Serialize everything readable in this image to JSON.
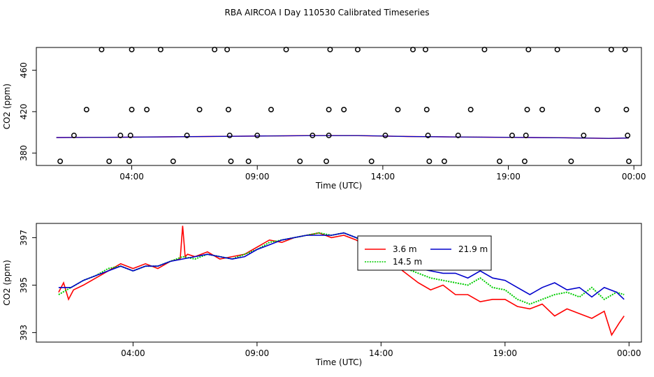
{
  "title": "RBA AIRCOA I  Day 110530  Calibrated Timeseries",
  "chart_data": [
    {
      "type": "scatter",
      "xlabel": "Time (UTC)",
      "ylabel": "CO2 (ppm)",
      "xlim": [
        0.2,
        24.3
      ],
      "ylim": [
        368,
        482
      ],
      "xticks": [
        {
          "v": 4,
          "label": "04:00"
        },
        {
          "v": 9,
          "label": "09:00"
        },
        {
          "v": 14,
          "label": "14:00"
        },
        {
          "v": 19,
          "label": "19:00"
        },
        {
          "v": 24,
          "label": "00:00"
        }
      ],
      "yticks": [
        380,
        420,
        460
      ],
      "colors": {
        "3.6m": "#ff0000",
        "14.5m": "#00cc00",
        "21.9m": "#0000cc"
      },
      "points": [
        {
          "x": 1.15,
          "y": 372
        },
        {
          "x": 1.7,
          "y": 397
        },
        {
          "x": 2.2,
          "y": 422
        },
        {
          "x": 2.8,
          "y": 480
        },
        {
          "x": 3.1,
          "y": 372
        },
        {
          "x": 3.55,
          "y": 397
        },
        {
          "x": 3.9,
          "y": 372
        },
        {
          "x": 3.95,
          "y": 397
        },
        {
          "x": 4.0,
          "y": 422
        },
        {
          "x": 4.0,
          "y": 480
        },
        {
          "x": 4.6,
          "y": 422
        },
        {
          "x": 5.15,
          "y": 480
        },
        {
          "x": 5.65,
          "y": 372
        },
        {
          "x": 6.2,
          "y": 397
        },
        {
          "x": 6.7,
          "y": 422
        },
        {
          "x": 7.3,
          "y": 480
        },
        {
          "x": 7.8,
          "y": 480
        },
        {
          "x": 7.85,
          "y": 422
        },
        {
          "x": 7.9,
          "y": 397
        },
        {
          "x": 7.95,
          "y": 372
        },
        {
          "x": 8.65,
          "y": 372
        },
        {
          "x": 9.0,
          "y": 397
        },
        {
          "x": 9.55,
          "y": 422
        },
        {
          "x": 10.15,
          "y": 480
        },
        {
          "x": 10.7,
          "y": 372
        },
        {
          "x": 11.2,
          "y": 397
        },
        {
          "x": 11.75,
          "y": 372
        },
        {
          "x": 11.85,
          "y": 397
        },
        {
          "x": 11.85,
          "y": 422
        },
        {
          "x": 11.9,
          "y": 480
        },
        {
          "x": 12.45,
          "y": 422
        },
        {
          "x": 13.0,
          "y": 480
        },
        {
          "x": 13.55,
          "y": 372
        },
        {
          "x": 14.1,
          "y": 397
        },
        {
          "x": 14.6,
          "y": 422
        },
        {
          "x": 15.2,
          "y": 480
        },
        {
          "x": 15.7,
          "y": 480
        },
        {
          "x": 15.75,
          "y": 422
        },
        {
          "x": 15.8,
          "y": 397
        },
        {
          "x": 15.85,
          "y": 372
        },
        {
          "x": 16.45,
          "y": 372
        },
        {
          "x": 17.0,
          "y": 397
        },
        {
          "x": 17.5,
          "y": 422
        },
        {
          "x": 18.05,
          "y": 480
        },
        {
          "x": 18.65,
          "y": 372
        },
        {
          "x": 19.15,
          "y": 397
        },
        {
          "x": 19.65,
          "y": 372
        },
        {
          "x": 19.7,
          "y": 397
        },
        {
          "x": 19.75,
          "y": 422
        },
        {
          "x": 19.8,
          "y": 480
        },
        {
          "x": 20.35,
          "y": 422
        },
        {
          "x": 20.95,
          "y": 480
        },
        {
          "x": 21.5,
          "y": 372
        },
        {
          "x": 22.0,
          "y": 397
        },
        {
          "x": 22.55,
          "y": 422
        },
        {
          "x": 23.1,
          "y": 480
        },
        {
          "x": 23.65,
          "y": 480
        },
        {
          "x": 23.7,
          "y": 422
        },
        {
          "x": 23.75,
          "y": 397
        },
        {
          "x": 23.8,
          "y": 372
        }
      ],
      "line_points": {
        "x": [
          1,
          3,
          5,
          7,
          9,
          11,
          13,
          15,
          17,
          19,
          21,
          23,
          23.8
        ],
        "y": [
          395,
          395.2,
          395.6,
          396,
          396.4,
          396.8,
          396.9,
          396,
          395.5,
          395.2,
          394.8,
          394.2,
          394.5
        ]
      }
    },
    {
      "type": "line",
      "xlabel": "Time (UTC)",
      "ylabel": "CO2 (ppm)",
      "xlim": [
        0.1,
        24.5
      ],
      "ylim": [
        392.6,
        397.6
      ],
      "xticks": [
        {
          "v": 4,
          "label": "04:00"
        },
        {
          "v": 9,
          "label": "09:00"
        },
        {
          "v": 14,
          "label": "14:00"
        },
        {
          "v": 19,
          "label": "19:00"
        },
        {
          "v": 24,
          "label": "00:00"
        }
      ],
      "yticks": [
        393,
        395,
        397
      ],
      "legend": {
        "position": "top-center",
        "entries": [
          {
            "name": "3.6 m",
            "color": "#ff0000",
            "style": "solid"
          },
          {
            "name": "21.9 m",
            "color": "#0000cc",
            "style": "solid"
          },
          {
            "name": "14.5 m",
            "color": "#00cc00",
            "style": "dotted"
          }
        ]
      },
      "series": [
        {
          "name": "3.6 m",
          "color": "#ff0000",
          "x": [
            1,
            1.2,
            1.4,
            1.6,
            2.0,
            2.5,
            3.0,
            3.5,
            4.0,
            4.5,
            5.0,
            5.5,
            5.9,
            6.0,
            6.1,
            6.2,
            6.5,
            7.0,
            7.5,
            8.0,
            8.5,
            9.0,
            9.5,
            10.0,
            10.5,
            11.0,
            11.5,
            12.0,
            12.5,
            13.0,
            13.5,
            14.0,
            14.5,
            15.0,
            15.5,
            16.0,
            16.5,
            17.0,
            17.5,
            18.0,
            18.5,
            19.0,
            19.5,
            20.0,
            20.5,
            21.0,
            21.5,
            22.0,
            22.5,
            23.0,
            23.3,
            23.6,
            23.8
          ],
          "y": [
            394.7,
            395.1,
            394.4,
            394.8,
            395.0,
            395.3,
            395.6,
            395.9,
            395.7,
            395.9,
            395.7,
            396.0,
            396.1,
            397.5,
            396.2,
            396.3,
            396.2,
            396.4,
            396.1,
            396.2,
            396.3,
            396.6,
            396.9,
            396.8,
            397.0,
            397.1,
            397.2,
            397.0,
            397.1,
            396.9,
            396.6,
            396.2,
            395.9,
            395.5,
            395.1,
            394.8,
            395.0,
            394.6,
            394.6,
            394.3,
            394.4,
            394.4,
            394.1,
            394.0,
            394.2,
            393.7,
            394.0,
            393.8,
            393.6,
            393.9,
            392.9,
            393.4,
            393.7
          ]
        },
        {
          "name": "14.5 m",
          "color": "#00cc00",
          "x": [
            1,
            1.5,
            2.0,
            2.5,
            3.0,
            3.5,
            4.0,
            4.5,
            5.0,
            5.5,
            6.0,
            6.5,
            7.0,
            7.5,
            8.0,
            8.5,
            9.0,
            9.5,
            10.0,
            10.5,
            11.0,
            11.5,
            12.0,
            12.5,
            13.0,
            13.5,
            14.0,
            14.5,
            15.0,
            15.5,
            16.0,
            16.5,
            17.0,
            17.5,
            18.0,
            18.5,
            19.0,
            19.5,
            20.0,
            20.5,
            21.0,
            21.5,
            22.0,
            22.5,
            23.0,
            23.5,
            23.8
          ],
          "y": [
            394.6,
            394.9,
            395.2,
            395.4,
            395.7,
            395.8,
            395.6,
            395.8,
            395.8,
            396.0,
            396.2,
            396.1,
            396.3,
            396.2,
            396.1,
            396.3,
            396.5,
            396.8,
            396.9,
            397.0,
            397.1,
            397.2,
            397.1,
            397.2,
            397.0,
            396.6,
            396.3,
            396.0,
            395.7,
            395.5,
            395.3,
            395.2,
            395.1,
            395.0,
            395.3,
            394.9,
            394.8,
            394.4,
            394.2,
            394.4,
            394.6,
            394.7,
            394.5,
            394.9,
            394.4,
            394.7,
            394.6
          ]
        },
        {
          "name": "21.9 m",
          "color": "#0000cc",
          "x": [
            1,
            1.5,
            2.0,
            2.5,
            3.0,
            3.5,
            4.0,
            4.5,
            5.0,
            5.5,
            6.0,
            6.5,
            7.0,
            7.5,
            8.0,
            8.5,
            9.0,
            9.5,
            10.0,
            10.5,
            11.0,
            11.5,
            12.0,
            12.5,
            13.0,
            13.5,
            14.0,
            14.5,
            15.0,
            15.5,
            16.0,
            16.5,
            17.0,
            17.5,
            18.0,
            18.5,
            19.0,
            19.5,
            20.0,
            20.5,
            21.0,
            21.5,
            22.0,
            22.5,
            23.0,
            23.5,
            23.8
          ],
          "y": [
            394.9,
            394.9,
            395.2,
            395.4,
            395.6,
            395.8,
            395.6,
            395.8,
            395.8,
            396.0,
            396.1,
            396.2,
            396.3,
            396.2,
            396.1,
            396.2,
            396.5,
            396.7,
            396.9,
            397.0,
            397.1,
            397.1,
            397.1,
            397.2,
            397.0,
            396.8,
            396.4,
            396.0,
            395.8,
            395.7,
            395.6,
            395.5,
            395.5,
            395.3,
            395.6,
            395.3,
            395.2,
            394.9,
            394.6,
            394.9,
            395.1,
            394.8,
            394.9,
            394.5,
            394.9,
            394.7,
            394.4
          ]
        }
      ]
    }
  ]
}
